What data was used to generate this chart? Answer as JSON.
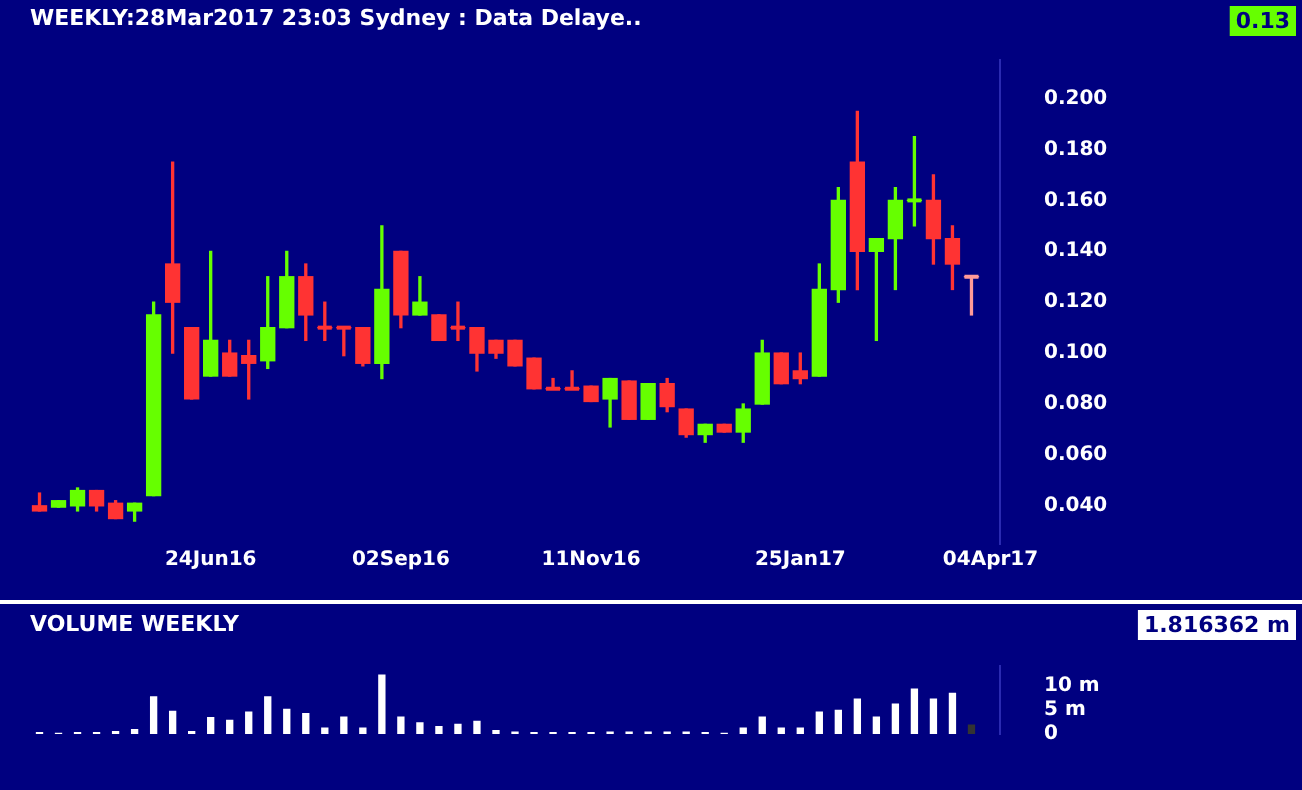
{
  "chart_data": [
    {
      "type": "candlestick",
      "title": "WEEKLY:28Mar2017 23:03 Sydney : Data Delaye..",
      "categories": [
        null,
        null,
        null,
        null,
        null,
        null,
        null,
        null,
        null,
        "24Jun16",
        null,
        null,
        null,
        null,
        null,
        null,
        null,
        null,
        null,
        "02Sep16",
        null,
        null,
        null,
        null,
        null,
        null,
        null,
        null,
        null,
        "11Nov16",
        null,
        null,
        null,
        null,
        null,
        null,
        null,
        null,
        null,
        null,
        "25Jan17",
        null,
        null,
        null,
        null,
        null,
        null,
        null,
        null,
        null,
        "04Apr17"
      ],
      "ohlc": [
        [
          0.04,
          0.045,
          0.038,
          0.038
        ],
        [
          0.0395,
          0.042,
          0.0395,
          0.042
        ],
        [
          0.04,
          0.047,
          0.038,
          0.046
        ],
        [
          0.046,
          0.046,
          0.038,
          0.04
        ],
        [
          0.041,
          0.042,
          0.035,
          0.035
        ],
        [
          0.038,
          0.041,
          0.034,
          0.041
        ],
        [
          0.044,
          0.12,
          0.044,
          0.115
        ],
        [
          0.135,
          0.175,
          0.1,
          0.12
        ],
        [
          0.11,
          0.11,
          0.082,
          0.082
        ],
        [
          0.091,
          0.14,
          0.091,
          0.105
        ],
        [
          0.1,
          0.105,
          0.091,
          0.091
        ],
        [
          0.099,
          0.105,
          0.082,
          0.096
        ],
        [
          0.097,
          0.13,
          0.094,
          0.11
        ],
        [
          0.11,
          0.14,
          0.11,
          0.13
        ],
        [
          0.13,
          0.135,
          0.105,
          0.115
        ],
        [
          0.11,
          0.12,
          0.105,
          0.11
        ],
        [
          0.11,
          0.11,
          0.099,
          0.11
        ],
        [
          0.11,
          0.11,
          0.095,
          0.096
        ],
        [
          0.096,
          0.15,
          0.09,
          0.125
        ],
        [
          0.14,
          0.14,
          0.11,
          0.115
        ],
        [
          0.115,
          0.13,
          0.115,
          0.12
        ],
        [
          0.115,
          0.115,
          0.105,
          0.105
        ],
        [
          0.11,
          0.12,
          0.105,
          0.11
        ],
        [
          0.11,
          0.11,
          0.093,
          0.1
        ],
        [
          0.105,
          0.105,
          0.098,
          0.1
        ],
        [
          0.105,
          0.105,
          0.095,
          0.095
        ],
        [
          0.098,
          0.098,
          0.086,
          0.086
        ],
        [
          0.086,
          0.09,
          0.086,
          0.086
        ],
        [
          0.086,
          0.093,
          0.086,
          0.086
        ],
        [
          0.087,
          0.087,
          0.081,
          0.081
        ],
        [
          0.082,
          0.09,
          0.071,
          0.09
        ],
        [
          0.089,
          0.089,
          0.074,
          0.074
        ],
        [
          0.074,
          0.088,
          0.074,
          0.088
        ],
        [
          0.088,
          0.09,
          0.077,
          0.079
        ],
        [
          0.078,
          0.078,
          0.067,
          0.068
        ],
        [
          0.068,
          0.072,
          0.065,
          0.072
        ],
        [
          0.072,
          0.072,
          0.069,
          0.069
        ],
        [
          0.069,
          0.08,
          0.065,
          0.078
        ],
        [
          0.08,
          0.105,
          0.08,
          0.1
        ],
        [
          0.1,
          0.1,
          0.088,
          0.088
        ],
        [
          0.093,
          0.1,
          0.088,
          0.09
        ],
        [
          0.091,
          0.135,
          0.091,
          0.125
        ],
        [
          0.125,
          0.165,
          0.12,
          0.16
        ],
        [
          0.175,
          0.195,
          0.125,
          0.14
        ],
        [
          0.14,
          0.145,
          0.105,
          0.145
        ],
        [
          0.145,
          0.165,
          0.125,
          0.16
        ],
        [
          0.16,
          0.185,
          0.15,
          0.16
        ],
        [
          0.16,
          0.17,
          0.135,
          0.145
        ],
        [
          0.145,
          0.15,
          0.125,
          0.135
        ],
        [
          0.13,
          0.13,
          0.115,
          0.13
        ],
        null
      ],
      "colors": [
        "#ff3333",
        "#66ff00",
        "#66ff00",
        "#ff3333",
        "#ff3333",
        "#66ff00",
        "#66ff00",
        "#ff3333",
        "#ff3333",
        "#66ff00",
        "#ff3333",
        "#ff3333",
        "#66ff00",
        "#66ff00",
        "#ff3333",
        "#ff3333",
        "#ff3333",
        "#ff3333",
        "#66ff00",
        "#ff3333",
        "#66ff00",
        "#ff3333",
        "#ff3333",
        "#ff3333",
        "#ff3333",
        "#ff3333",
        "#ff3333",
        "#ff3333",
        "#ff3333",
        "#ff3333",
        "#66ff00",
        "#ff3333",
        "#66ff00",
        "#ff3333",
        "#ff3333",
        "#66ff00",
        "#ff3333",
        "#66ff00",
        "#66ff00",
        "#ff3333",
        "#ff3333",
        "#66ff00",
        "#66ff00",
        "#ff3333",
        "#66ff00",
        "#66ff00",
        "#66ff00",
        "#ff3333",
        "#ff3333",
        "#ff9999",
        null
      ],
      "ylim": [
        0.025,
        0.215
      ],
      "yticks": [
        {
          "value": 0.04,
          "label": "0.040"
        },
        {
          "value": 0.06,
          "label": "0.060"
        },
        {
          "value": 0.08,
          "label": "0.080"
        },
        {
          "value": 0.1,
          "label": "0.100"
        },
        {
          "value": 0.12,
          "label": "0.120"
        },
        {
          "value": 0.14,
          "label": "0.140"
        },
        {
          "value": 0.16,
          "label": "0.160"
        },
        {
          "value": 0.18,
          "label": "0.180"
        },
        {
          "value": 0.2,
          "label": "0.200"
        }
      ],
      "annotations": [
        "0.13"
      ]
    },
    {
      "type": "bar",
      "title": "VOLUME WEEKLY",
      "categories": [
        null,
        null,
        null,
        null,
        null,
        null,
        null,
        null,
        null,
        null,
        null,
        null,
        null,
        null,
        null,
        null,
        null,
        null,
        null,
        null,
        null,
        null,
        null,
        null,
        null,
        null,
        null,
        null,
        null,
        null,
        null,
        null,
        null,
        null,
        null,
        null,
        null,
        null,
        null,
        null,
        null,
        null,
        null,
        null,
        null,
        null,
        null,
        null,
        null,
        null,
        null
      ],
      "values": [
        0.3,
        0.1,
        0.3,
        0.3,
        0.5,
        0.9,
        7.7,
        4.7,
        0.5,
        3.4,
        2.8,
        4.5,
        7.7,
        5.1,
        4.2,
        1.2,
        3.5,
        1.2,
        12.2,
        3.5,
        2.3,
        1.5,
        2.0,
        2.6,
        0.7,
        0.4,
        0.3,
        0.3,
        0.3,
        0.3,
        0.4,
        0.4,
        0.4,
        0.4,
        0.4,
        0.3,
        0.1,
        1.2,
        3.5,
        1.2,
        1.2,
        4.5,
        4.9,
        7.2,
        3.5,
        6.2,
        9.3,
        7.2,
        8.4,
        1.816362,
        null
      ],
      "colors": [
        "#ffffff",
        "#ffffff",
        "#ffffff",
        "#ffffff",
        "#ffffff",
        "#ffffff",
        "#ffffff",
        "#ffffff",
        "#ffffff",
        "#ffffff",
        "#ffffff",
        "#ffffff",
        "#ffffff",
        "#ffffff",
        "#ffffff",
        "#ffffff",
        "#ffffff",
        "#ffffff",
        "#ffffff",
        "#ffffff",
        "#ffffff",
        "#ffffff",
        "#ffffff",
        "#ffffff",
        "#ffffff",
        "#ffffff",
        "#ffffff",
        "#ffffff",
        "#ffffff",
        "#ffffff",
        "#ffffff",
        "#ffffff",
        "#ffffff",
        "#ffffff",
        "#ffffff",
        "#ffffff",
        "#ffffff",
        "#ffffff",
        "#ffffff",
        "#ffffff",
        "#ffffff",
        "#ffffff",
        "#ffffff",
        "#ffffff",
        "#ffffff",
        "#ffffff",
        "#ffffff",
        "#ffffff",
        "#ffffff",
        "#333333",
        null
      ],
      "ylim": [
        0,
        14
      ],
      "yticks": [
        0,
        {
          "value": 5,
          "label": "5 m"
        },
        {
          "value": 10,
          "label": "10 m"
        }
      ],
      "tick_labels": "y",
      "annotations": [
        "1.816362 m"
      ]
    }
  ]
}
